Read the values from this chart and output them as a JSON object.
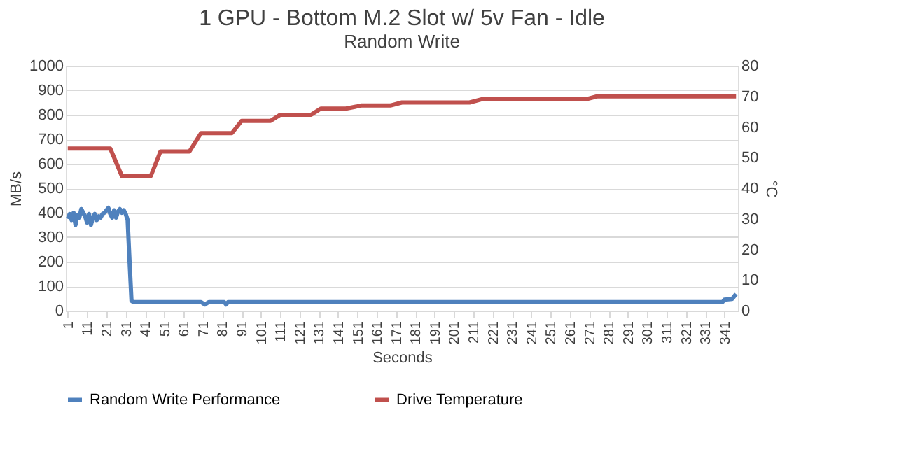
{
  "chart_data": {
    "type": "line",
    "title": "1 GPU - Bottom M.2 Slot w/ 5v Fan  - Idle",
    "subtitle": "Random Write",
    "xlabel": "Seconds",
    "ylabel": "MB/s",
    "y2label": "°C",
    "xlim": [
      0,
      348
    ],
    "xticks": [
      1,
      11,
      21,
      31,
      41,
      51,
      61,
      71,
      81,
      91,
      101,
      111,
      121,
      131,
      141,
      151,
      161,
      171,
      181,
      191,
      201,
      211,
      221,
      231,
      241,
      251,
      261,
      271,
      281,
      291,
      301,
      311,
      321,
      331,
      341
    ],
    "ylim": [
      0,
      1000
    ],
    "yticks": [
      0,
      100,
      200,
      300,
      400,
      500,
      600,
      700,
      800,
      900,
      1000
    ],
    "y2lim": [
      0,
      80
    ],
    "y2ticks": [
      0,
      10,
      20,
      30,
      40,
      50,
      60,
      70,
      80
    ],
    "grid": "y",
    "legend": "bottom",
    "line_style": "solid",
    "marker": "none",
    "series": [
      {
        "name": "Random Write Performance",
        "color": "#4f81bd",
        "x": [
          1,
          2,
          3,
          4,
          5,
          6,
          7,
          8,
          9,
          10,
          11,
          12,
          13,
          14,
          15,
          16,
          17,
          18,
          19,
          20,
          21,
          22,
          23,
          24,
          25,
          26,
          27,
          28,
          29,
          30,
          31,
          32,
          33,
          34,
          35,
          70,
          72,
          74,
          82,
          83,
          84,
          340,
          341,
          345,
          347
        ],
        "values": [
          375,
          395,
          370,
          400,
          350,
          390,
          380,
          415,
          400,
          385,
          360,
          395,
          350,
          380,
          395,
          370,
          385,
          380,
          395,
          400,
          410,
          420,
          395,
          380,
          410,
          380,
          405,
          415,
          400,
          410,
          395,
          370,
          200,
          40,
          35,
          35,
          25,
          35,
          35,
          25,
          35,
          35,
          45,
          48,
          68
        ]
      },
      {
        "name": "Drive Temperature",
        "color": "#c0504d",
        "axis": "y2",
        "x": [
          1,
          23,
          29,
          44,
          49,
          64,
          70,
          86,
          91,
          106,
          111,
          127,
          132,
          145,
          153,
          168,
          174,
          209,
          215,
          269,
          275,
          347
        ],
        "values": [
          53,
          53,
          44,
          44,
          52,
          52,
          58,
          58,
          62,
          62,
          64,
          64,
          66,
          66,
          67,
          67,
          68,
          68,
          69,
          69,
          70,
          70
        ]
      }
    ]
  }
}
